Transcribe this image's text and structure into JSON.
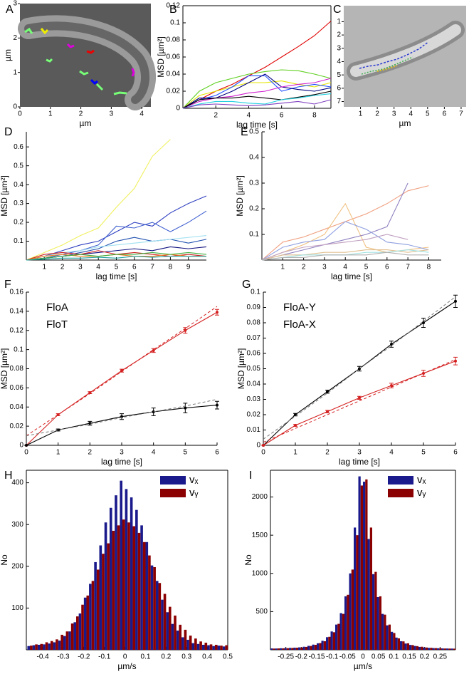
{
  "chart_data": [
    {
      "type": "image",
      "panel": "A",
      "xlabel": "µm",
      "ylabel": "µm",
      "xlim": [
        0,
        4.3
      ],
      "ylim": [
        0,
        3
      ],
      "xticks": [
        0,
        1,
        2,
        3,
        4
      ],
      "yticks": [
        0,
        1,
        2,
        3
      ]
    },
    {
      "type": "line",
      "panel": "B",
      "xlabel": "lag time [s]",
      "ylabel": "MSD [µm²]",
      "box": true,
      "x": [
        0,
        1,
        2,
        3,
        4,
        5,
        6,
        7,
        8,
        9
      ],
      "xlim": [
        0,
        9
      ],
      "ylim": [
        0,
        0.12
      ],
      "xticks": [
        2,
        4,
        6,
        8
      ],
      "yticks": [
        0,
        0.02,
        0.04,
        0.06,
        0.08,
        0.1,
        0.12
      ],
      "series": [
        {
          "color": "#e00000",
          "values": [
            0,
            0.01,
            0.02,
            0.028,
            0.038,
            0.048,
            0.06,
            0.072,
            0.085,
            0.102
          ]
        },
        {
          "color": "#5fd01f",
          "values": [
            0,
            0.02,
            0.03,
            0.035,
            0.04,
            0.043,
            0.045,
            0.044,
            0.04,
            0.035
          ]
        },
        {
          "color": "#e6e600",
          "values": [
            0,
            0.015,
            0.02,
            0.025,
            0.03,
            0.03,
            0.032,
            0.028,
            0.025,
            0.03
          ]
        },
        {
          "color": "#1f4fff",
          "values": [
            0,
            0.01,
            0.015,
            0.025,
            0.038,
            0.038,
            0.02,
            0.025,
            0.028,
            0.025
          ]
        },
        {
          "color": "#000080",
          "values": [
            0,
            0.012,
            0.012,
            0.02,
            0.03,
            0.04,
            0.025,
            0.022,
            0.02,
            0.024
          ]
        },
        {
          "color": "#d020d0",
          "values": [
            0,
            0.008,
            0.012,
            0.014,
            0.018,
            0.02,
            0.025,
            0.028,
            0.03,
            0.035
          ]
        },
        {
          "color": "#000000",
          "values": [
            0,
            0.01,
            0.012,
            0.012,
            0.014,
            0.012,
            0.01,
            0.013,
            0.016,
            0.02
          ]
        },
        {
          "color": "#20d0e0",
          "values": [
            0,
            0.005,
            0.008,
            0.008,
            0.006,
            0.005,
            0.01,
            0.012,
            0.015,
            0.017
          ]
        },
        {
          "color": "#8040c0",
          "values": [
            0,
            0.004,
            0.005,
            0.004,
            0.003,
            0.004,
            0.006,
            0.008,
            0.005,
            0.01
          ]
        }
      ]
    },
    {
      "type": "image",
      "panel": "C",
      "xlabel": "µm",
      "xlim": [
        0,
        7.3
      ],
      "ylim": [
        7.4,
        -0.2
      ],
      "xticks": [
        1,
        2,
        3,
        4,
        5,
        6,
        7
      ],
      "yticks": [
        1,
        2,
        3,
        4,
        5,
        6,
        7
      ]
    },
    {
      "type": "line",
      "panel": "D",
      "xlabel": "lag time [s]",
      "ylabel": "MSD [µm²]",
      "x": [
        0,
        1,
        2,
        3,
        4,
        5,
        6,
        7,
        8,
        9,
        10
      ],
      "xlim": [
        0,
        10
      ],
      "ylim": [
        0,
        0.68
      ],
      "xticks": [
        1,
        2,
        3,
        4,
        5,
        6,
        7,
        8,
        9
      ],
      "yticks": [
        0.1,
        0.2,
        0.3,
        0.4,
        0.5,
        0.6
      ],
      "series": [
        {
          "color": "#f0f060",
          "values": [
            0,
            0.04,
            0.08,
            0.13,
            0.17,
            0.28,
            0.38,
            0.55,
            0.64,
            null,
            null
          ]
        },
        {
          "color": "#3040c0",
          "values": [
            0,
            0.02,
            0.05,
            0.08,
            0.1,
            0.15,
            0.2,
            0.18,
            0.25,
            0.3,
            0.34
          ]
        },
        {
          "color": "#4060d0",
          "values": [
            0,
            0.01,
            0.03,
            0.05,
            0.08,
            0.18,
            0.17,
            0.2,
            0.15,
            0.2,
            0.26
          ]
        },
        {
          "color": "#2050b0",
          "values": [
            0,
            0.01,
            0.02,
            0.04,
            0.06,
            0.1,
            0.12,
            0.1,
            0.11,
            0.09,
            0.11
          ]
        },
        {
          "color": "#a0e0f0",
          "values": [
            0,
            0.02,
            0.04,
            0.05,
            0.07,
            0.08,
            0.09,
            0.1,
            0.11,
            0.12,
            0.13
          ]
        },
        {
          "color": "#101080",
          "values": [
            0,
            0.01,
            0.02,
            0.03,
            0.04,
            0.05,
            0.06,
            0.05,
            0.07,
            0.06,
            0.07
          ]
        },
        {
          "color": "#d02020",
          "values": [
            0,
            0.03,
            0.04,
            0.03,
            0.05,
            0.03,
            0.04,
            0.03,
            0.02,
            0.03,
            0.02
          ]
        },
        {
          "color": "#f08020",
          "values": [
            0,
            0.02,
            0.03,
            0.02,
            0.02,
            0.03,
            0.02,
            0.02,
            0.03,
            0.02,
            0.02
          ]
        },
        {
          "color": "#40b040",
          "values": [
            0,
            0.01,
            0.02,
            0.03,
            0.02,
            0.03,
            0.03,
            0.04,
            0.03,
            0.04,
            0.03
          ]
        },
        {
          "color": "#20a0a0",
          "values": [
            0,
            0.005,
            0.01,
            0.01,
            0.015,
            0.01,
            0.02,
            0.015,
            0.02,
            0.02,
            0.02
          ]
        }
      ]
    },
    {
      "type": "line",
      "panel": "E",
      "xlabel": "lag time [s]",
      "ylabel": "MSD [µm²]",
      "x": [
        0,
        1,
        2,
        3,
        4,
        5,
        6,
        7,
        8
      ],
      "xlim": [
        0,
        8.6
      ],
      "ylim": [
        0,
        0.5
      ],
      "xticks": [
        1,
        2,
        3,
        4,
        5,
        6,
        7,
        8
      ],
      "yticks": [
        0.1,
        0.2,
        0.3,
        0.4,
        0.5
      ],
      "series": [
        {
          "color": "#f0a080",
          "values": [
            0,
            0.07,
            0.09,
            0.12,
            0.15,
            0.18,
            0.22,
            0.27,
            0.29
          ]
        },
        {
          "color": "#f0c080",
          "values": [
            0,
            0.03,
            0.06,
            0.1,
            0.22,
            0.05,
            0.03,
            0.04,
            0.05
          ]
        },
        {
          "color": "#9080c0",
          "values": [
            0,
            0.02,
            0.04,
            0.06,
            0.08,
            0.1,
            0.13,
            0.3,
            null
          ]
        },
        {
          "color": "#90a0e0",
          "values": [
            0,
            0.05,
            0.07,
            0.08,
            0.15,
            0.12,
            0.07,
            0.06,
            0.04
          ]
        },
        {
          "color": "#c0a0c0",
          "values": [
            0,
            0.03,
            0.05,
            0.06,
            0.07,
            0.08,
            0.1,
            0.08,
            null
          ]
        },
        {
          "color": "#e0c090",
          "values": [
            0,
            0.02,
            0.02,
            0.03,
            0.03,
            0.04,
            0.04,
            0.03,
            0.04
          ]
        },
        {
          "color": "#a0e0e0",
          "values": [
            0,
            0.01,
            0.02,
            0.02,
            0.02,
            0.03,
            0.03,
            0.04,
            0.03
          ]
        },
        {
          "color": "#b0b0b0",
          "values": [
            0,
            0.01,
            0.01,
            0.02,
            0.02,
            0.02,
            0.03,
            0.02,
            0.02
          ]
        }
      ]
    },
    {
      "type": "line",
      "panel": "F",
      "xlabel": "lag time [s]",
      "ylabel": "MSD [µm²]",
      "legend": "top-left",
      "x": [
        0,
        1,
        2,
        3,
        4,
        5,
        6
      ],
      "xlim": [
        0,
        6
      ],
      "ylim": [
        0,
        0.16
      ],
      "xticks": [
        0,
        1,
        2,
        3,
        4,
        5,
        6
      ],
      "yticks": [
        0,
        0.02,
        0.04,
        0.06,
        0.08,
        0.1,
        0.12,
        0.14,
        0.16
      ],
      "series": [
        {
          "name": "FloA",
          "color": "#d42020",
          "values": [
            0,
            0.032,
            0.055,
            0.078,
            0.099,
            0.12,
            0.139
          ],
          "errors": [
            0,
            0.001,
            0.001,
            0.0015,
            0.002,
            0.003,
            0.003
          ]
        },
        {
          "name": "FloT",
          "color": "#000000",
          "values": [
            0,
            0.016,
            0.023,
            0.03,
            0.035,
            0.039,
            0.042
          ],
          "errors": [
            0,
            0.001,
            0.002,
            0.003,
            0.004,
            0.005,
            0.004
          ]
        },
        {
          "color": "#d42020",
          "dashed": true,
          "values": [
            0.01,
            0.032,
            0.054,
            0.077,
            0.1,
            0.122,
            0.145
          ]
        },
        {
          "color": "#777777",
          "dashed": true,
          "values": [
            0.01,
            0.016,
            0.022,
            0.029,
            0.035,
            0.041,
            0.048
          ]
        }
      ]
    },
    {
      "type": "line",
      "panel": "G",
      "xlabel": "lag time [s]",
      "ylabel": "MSD [µm²]",
      "legend": "top-left",
      "x": [
        0,
        1,
        2,
        3,
        4,
        5,
        6
      ],
      "xlim": [
        0,
        6
      ],
      "ylim": [
        0,
        0.1
      ],
      "xticks": [
        0,
        1,
        2,
        3,
        4,
        5,
        6
      ],
      "yticks": [
        0,
        0.01,
        0.02,
        0.03,
        0.04,
        0.05,
        0.06,
        0.07,
        0.08,
        0.09,
        0.1
      ],
      "series": [
        {
          "name": "FloA-Y",
          "color": "#000000",
          "values": [
            0,
            0.02,
            0.035,
            0.05,
            0.066,
            0.08,
            0.094
          ],
          "errors": [
            0,
            0.0008,
            0.001,
            0.0015,
            0.002,
            0.003,
            0.004
          ]
        },
        {
          "name": "FloA-X",
          "color": "#d42020",
          "values": [
            0,
            0.013,
            0.022,
            0.031,
            0.039,
            0.047,
            0.055
          ],
          "errors": [
            0,
            0.0006,
            0.0008,
            0.001,
            0.0015,
            0.002,
            0.0025
          ]
        },
        {
          "color": "#777777",
          "dashed": true,
          "values": [
            0.004,
            0.019,
            0.034,
            0.05,
            0.065,
            0.081,
            0.097
          ]
        },
        {
          "color": "#d42020",
          "dashed": true,
          "values": [
            0.002,
            0.011,
            0.02,
            0.029,
            0.038,
            0.047,
            0.056
          ]
        }
      ]
    },
    {
      "type": "histogram",
      "panel": "H",
      "xlabel": "µm/s",
      "ylabel": "No",
      "box": true,
      "legend": "top-right",
      "bins": [
        -0.475,
        -0.45,
        -0.425,
        -0.4,
        -0.375,
        -0.35,
        -0.325,
        -0.3,
        -0.275,
        -0.25,
        -0.225,
        -0.2,
        -0.175,
        -0.15,
        -0.125,
        -0.1,
        -0.075,
        -0.05,
        -0.025,
        0,
        0.025,
        0.05,
        0.075,
        0.1,
        0.125,
        0.15,
        0.175,
        0.2,
        0.225,
        0.25,
        0.275,
        0.3,
        0.325,
        0.35,
        0.375,
        0.4,
        0.425,
        0.45,
        0.475,
        0.5
      ],
      "xlim": [
        -0.48,
        0.5
      ],
      "ylim": [
        0,
        430
      ],
      "xticks": [
        -0.4,
        -0.3,
        -0.2,
        -0.1,
        0,
        0.1,
        0.2,
        0.3,
        0.4,
        0.5
      ],
      "yticks": [
        100,
        200,
        300,
        400
      ],
      "series": [
        {
          "name": "vₓ",
          "color": "#1a1a8c",
          "values": [
            9,
            11,
            12,
            13,
            15,
            18,
            22,
            33,
            44,
            66,
            87,
            125,
            158,
            210,
            250,
            305,
            340,
            370,
            405,
            385,
            365,
            335,
            298,
            258,
            202,
            165,
            120,
            90,
            62,
            46,
            30,
            24,
            16,
            14,
            12,
            11,
            9,
            10,
            8
          ]
        },
        {
          "name": "vᵧ",
          "color": "#8b0000",
          "values": [
            10,
            13,
            14,
            18,
            21,
            25,
            36,
            44,
            63,
            80,
            108,
            130,
            165,
            192,
            230,
            255,
            285,
            298,
            312,
            305,
            296,
            280,
            258,
            226,
            198,
            160,
            134,
            103,
            82,
            60,
            48,
            34,
            27,
            20,
            17,
            13,
            12,
            10,
            11
          ]
        }
      ]
    },
    {
      "type": "histogram",
      "panel": "I",
      "xlabel": "µm/s",
      "ylabel": "No",
      "box": true,
      "legend": "top-right",
      "bins": [
        -0.3,
        -0.285,
        -0.27,
        -0.255,
        -0.24,
        -0.225,
        -0.21,
        -0.195,
        -0.18,
        -0.165,
        -0.15,
        -0.135,
        -0.12,
        -0.105,
        -0.09,
        -0.075,
        -0.06,
        -0.045,
        -0.03,
        -0.015,
        0,
        0.015,
        0.03,
        0.045,
        0.06,
        0.075,
        0.09,
        0.105,
        0.12,
        0.135,
        0.15,
        0.165,
        0.18,
        0.195,
        0.21,
        0.225,
        0.24,
        0.255,
        0.27,
        0.285,
        0.3
      ],
      "xlim": [
        -0.3,
        0.3
      ],
      "ylim": [
        0,
        2350
      ],
      "xticks": [
        -0.25,
        -0.2,
        -0.15,
        -0.1,
        -0.05,
        0,
        0.05,
        0.1,
        0.15,
        0.2,
        0.25
      ],
      "yticks": [
        500,
        1000,
        1500,
        2000
      ],
      "series": [
        {
          "name": "vₓ",
          "color": "#1a1a8c",
          "values": [
            18,
            17,
            20,
            22,
            25,
            28,
            32,
            40,
            52,
            68,
            85,
            118,
            165,
            240,
            330,
            480,
            700,
            1000,
            1600,
            2270,
            2200,
            1450,
            990,
            690,
            470,
            320,
            235,
            160,
            112,
            82,
            64,
            50,
            38,
            30,
            25,
            22,
            20,
            18,
            17,
            16
          ]
        },
        {
          "name": "vᵧ",
          "color": "#8b0000",
          "values": [
            16,
            18,
            19,
            21,
            24,
            27,
            30,
            38,
            50,
            65,
            88,
            112,
            170,
            230,
            340,
            470,
            720,
            1050,
            1500,
            2150,
            2230,
            1600,
            1020,
            700,
            460,
            330,
            220,
            150,
            110,
            85,
            62,
            48,
            40,
            30,
            26,
            22,
            19,
            17,
            16,
            15
          ]
        }
      ]
    }
  ]
}
